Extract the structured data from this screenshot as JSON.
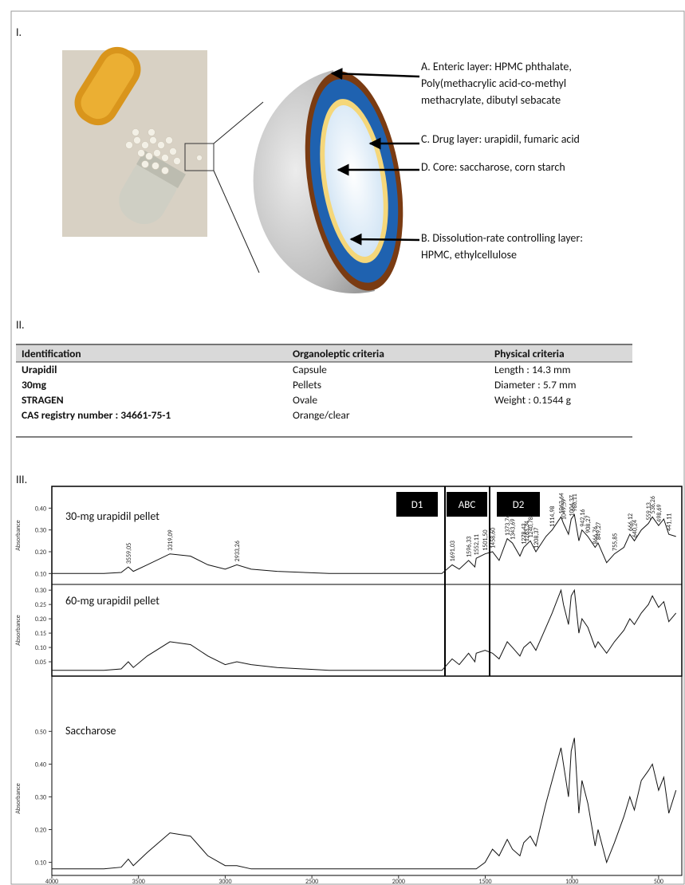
{
  "sections": [
    "I.",
    "II.",
    "III."
  ],
  "figure_I": {
    "labels": [
      {
        "lines": [
          "A. Enteric layer: HPMC phthalate,",
          "Poly(methacrylic acid-co-methyl",
          "methacrylate, dibutyl sebacate"
        ]
      },
      {
        "lines": [
          "C. Drug layer: urapidil, fumaric acid"
        ]
      },
      {
        "lines": [
          "D. Core: saccharose, corn starch"
        ]
      },
      {
        "lines": [
          "B. Dissolution-rate controlling layer:",
          "HPMC, ethylcellulose"
        ]
      }
    ]
  },
  "table": {
    "header": [
      "Identification",
      "Organoleptic criteria",
      "Physical criteria"
    ],
    "rows": [
      [
        "Urapidil",
        "Capsule",
        "Length : 14.3 mm"
      ],
      [
        "30mg",
        "Pellets",
        "Diameter : 5.7 mm"
      ],
      [
        "STRAGEN",
        "Ovale",
        "Weight : 0.1544 g"
      ],
      [
        "CAS registry number : 34661-75-1",
        "Orange/clear"
      ]
    ]
  },
  "spectra": {
    "y_axis_label": "Absorbance",
    "region_labels": [
      "D1",
      "ABC",
      "D2"
    ],
    "xlim": [
      4000,
      380
    ],
    "xticks": [
      4000,
      3500,
      3000,
      2500,
      2000,
      1500,
      1000,
      500
    ],
    "x": [
      4000,
      3700,
      3600,
      3559,
      3530,
      3450,
      3319,
      3200,
      3100,
      3000,
      2933,
      2850,
      2700,
      2400,
      2100,
      1800,
      1750,
      1691,
      1650,
      1596,
      1560,
      1552,
      1501,
      1458,
      1420,
      1373,
      1343,
      1300,
      1278,
      1240,
      1208,
      1150,
      1114,
      1063,
      1049,
      1020,
      1004,
      986,
      960,
      942,
      908,
      866,
      849,
      800,
      755,
      700,
      666,
      640,
      600,
      559,
      536,
      500,
      470,
      441,
      400
    ],
    "panels": [
      {
        "title": "30-mg urapidil pellet",
        "ylim": [
          0.05,
          0.5
        ],
        "yticks": [
          {
            "value": 0.1,
            "label": "0.10"
          },
          {
            "value": 0.2,
            "label": "0.20"
          },
          {
            "value": 0.3,
            "label": "0.30"
          },
          {
            "value": 0.4,
            "label": "0.40"
          }
        ],
        "values": [
          0.1,
          0.1,
          0.105,
          0.13,
          0.11,
          0.14,
          0.19,
          0.18,
          0.14,
          0.12,
          0.14,
          0.12,
          0.11,
          0.1,
          0.1,
          0.1,
          0.1,
          0.14,
          0.12,
          0.16,
          0.13,
          0.17,
          0.19,
          0.2,
          0.16,
          0.26,
          0.24,
          0.18,
          0.22,
          0.25,
          0.2,
          0.27,
          0.3,
          0.36,
          0.33,
          0.28,
          0.35,
          0.37,
          0.25,
          0.3,
          0.27,
          0.22,
          0.24,
          0.15,
          0.19,
          0.22,
          0.28,
          0.25,
          0.3,
          0.33,
          0.36,
          0.32,
          0.35,
          0.28,
          0.27
        ],
        "peaks": [
          {
            "value": 3559.05,
            "label": "3559,05"
          },
          {
            "value": 3319.09,
            "label": "3319,09"
          },
          {
            "value": 2933.26,
            "label": "2933,26"
          },
          {
            "value": 1691.03,
            "label": "1691,03"
          },
          {
            "value": 1596.33,
            "label": "1596,33"
          },
          {
            "value": 1552.11,
            "label": "1552,11"
          },
          {
            "value": 1501.5,
            "label": "1501,50"
          },
          {
            "value": 1458.6,
            "label": "1458,60"
          },
          {
            "value": 1373.74,
            "label": "1373,74"
          },
          {
            "value": 1343.69,
            "label": "1343,69"
          },
          {
            "value": 1278.43,
            "label": "1278,43"
          },
          {
            "value": 1263.34,
            "label": "1263,34"
          },
          {
            "value": 1240.78,
            "label": "1240,78"
          },
          {
            "value": 1208.37,
            "label": "1208,37"
          },
          {
            "value": 1114.98,
            "label": "1114,98"
          },
          {
            "value": 1063.64,
            "label": "1063,64"
          },
          {
            "value": 1049.59,
            "label": "1049,59"
          },
          {
            "value": 1004.37,
            "label": "1004,37"
          },
          {
            "value": 986.11,
            "label": "986,11"
          },
          {
            "value": 942.16,
            "label": "942,16"
          },
          {
            "value": 908.27,
            "label": "908,27"
          },
          {
            "value": 866.76,
            "label": "866,76"
          },
          {
            "value": 849.27,
            "label": "849,27"
          },
          {
            "value": 755.85,
            "label": "755,85"
          },
          {
            "value": 666.12,
            "label": "666,12"
          },
          {
            "value": 640.24,
            "label": "640,24"
          },
          {
            "value": 559.13,
            "label": "559,13"
          },
          {
            "value": 536.26,
            "label": "536,26"
          },
          {
            "value": 498.69,
            "label": "498,69"
          },
          {
            "value": 441.11,
            "label": "441,11"
          }
        ]
      },
      {
        "title": "60-mg urapidil pellet",
        "ylim": [
          0,
          0.32
        ],
        "yticks": [
          {
            "value": 0.05,
            "label": "0.05"
          },
          {
            "value": 0.1,
            "label": "0.10"
          },
          {
            "value": 0.15,
            "label": "0.15"
          },
          {
            "value": 0.2,
            "label": "0.20"
          },
          {
            "value": 0.25,
            "label": "0.25"
          },
          {
            "value": 0.3,
            "label": "0.30"
          }
        ],
        "values": [
          0.02,
          0.02,
          0.025,
          0.05,
          0.03,
          0.07,
          0.12,
          0.11,
          0.07,
          0.04,
          0.05,
          0.04,
          0.03,
          0.02,
          0.02,
          0.02,
          0.02,
          0.06,
          0.04,
          0.08,
          0.05,
          0.08,
          0.09,
          0.08,
          0.06,
          0.12,
          0.1,
          0.07,
          0.1,
          0.12,
          0.09,
          0.17,
          0.22,
          0.3,
          0.25,
          0.18,
          0.28,
          0.3,
          0.15,
          0.2,
          0.17,
          0.1,
          0.12,
          0.08,
          0.12,
          0.16,
          0.2,
          0.18,
          0.22,
          0.25,
          0.28,
          0.24,
          0.26,
          0.19,
          0.22
        ]
      },
      {
        "title": "Saccharose",
        "ylim": [
          0.06,
          0.53
        ],
        "yticks": [
          {
            "value": 0.1,
            "label": "0.10"
          },
          {
            "value": 0.2,
            "label": "0.20"
          },
          {
            "value": 0.3,
            "label": "0.30"
          },
          {
            "value": 0.4,
            "label": "0.40"
          },
          {
            "value": 0.5,
            "label": "0.50"
          }
        ],
        "values": [
          0.08,
          0.08,
          0.085,
          0.11,
          0.09,
          0.13,
          0.19,
          0.18,
          0.12,
          0.09,
          0.09,
          0.08,
          0.08,
          0.08,
          0.08,
          0.08,
          0.08,
          0.08,
          0.08,
          0.08,
          0.08,
          0.08,
          0.1,
          0.14,
          0.12,
          0.17,
          0.14,
          0.12,
          0.16,
          0.18,
          0.15,
          0.28,
          0.35,
          0.45,
          0.4,
          0.3,
          0.44,
          0.48,
          0.25,
          0.35,
          0.28,
          0.15,
          0.2,
          0.1,
          0.16,
          0.24,
          0.3,
          0.26,
          0.35,
          0.38,
          0.4,
          0.32,
          0.36,
          0.25,
          0.32
        ]
      }
    ]
  }
}
